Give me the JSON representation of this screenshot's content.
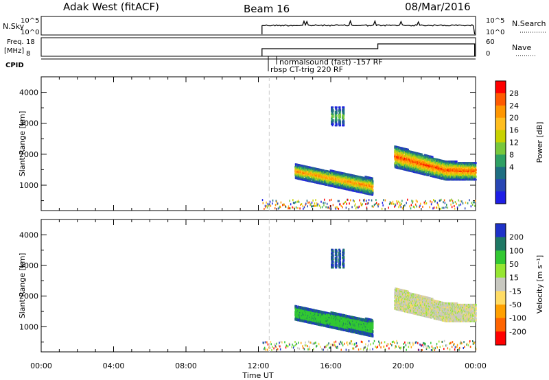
{
  "header": {
    "station": "Adak West (fitACF)",
    "beam": "Beam 16",
    "date": "08/Mar/2016"
  },
  "top_panels": {
    "nsky_label": "N.Sky",
    "nsky_ticks": [
      "10^5",
      "10^0"
    ],
    "nsearch_label": "N.Search",
    "nsearch_ticks": [
      "10^5",
      "10^0"
    ],
    "freq_label_line1": "Freq.",
    "freq_label_line2": "[MHz]",
    "freq_ticks": [
      "18",
      "8"
    ],
    "nave_label": "Nave",
    "nave_ticks": [
      "60",
      "0"
    ],
    "cpid_label": "CPID",
    "cpid_entries": [
      "normalsound (fast) -157 RF",
      "rbsp CT-trig 220 RF"
    ]
  },
  "chart_data": [
    {
      "type": "heatmap",
      "panel": "power",
      "ylabel": "Slant Range [km]",
      "yticks": [
        "4000",
        "3000",
        "2000",
        "1000"
      ],
      "ylim": [
        180,
        4500
      ],
      "xlim_hours": [
        0,
        24
      ],
      "colorbar_label": "Power [dB]",
      "colorbar_ticks": [
        "28",
        "24",
        "20",
        "16",
        "12",
        "8",
        "4"
      ],
      "colorbar_colors": [
        "#ff0000",
        "#ff5a00",
        "#ff9600",
        "#ffbe1e",
        "#c8d200",
        "#78c83c",
        "#2ea064",
        "#1e6e82",
        "#2846b4",
        "#1e1ee6"
      ],
      "echo_regions": [
        {
          "t_start": 14.0,
          "t_end": 18.3,
          "range_min": 800,
          "range_max": 1500,
          "peak_db": 26
        },
        {
          "t_start": 19.5,
          "t_end": 24.0,
          "range_min": 1100,
          "range_max": 2300,
          "peak_db": 30
        },
        {
          "t_start": 16.0,
          "t_end": 16.8,
          "range_min": 2900,
          "range_max": 3500,
          "peak_db": 16
        }
      ]
    },
    {
      "type": "heatmap",
      "panel": "velocity",
      "ylabel": "Slant Range [km]",
      "yticks": [
        "4000",
        "3000",
        "2000",
        "1000"
      ],
      "ylim": [
        180,
        4500
      ],
      "xlim_hours": [
        0,
        24
      ],
      "xticks": [
        "00:00",
        "04:00",
        "08:00",
        "12:00",
        "16:00",
        "20:00",
        "00:00"
      ],
      "xlabel": "Time UT",
      "colorbar_label": "Velocity [m s⁻¹]",
      "colorbar_ticks": [
        "200",
        "100",
        "50",
        "15",
        "-15",
        "-50",
        "-100",
        "-200"
      ],
      "colorbar_colors": [
        "#1e32c8",
        "#1e7864",
        "#32c832",
        "#96e632",
        "#c8c8c0",
        "#ffdc64",
        "#ffa000",
        "#ff6400",
        "#ff0000"
      ],
      "echo_regions": [
        {
          "t_start": 14.0,
          "t_end": 18.3,
          "range_min": 800,
          "range_max": 1500,
          "velocity": 60
        },
        {
          "t_start": 19.5,
          "t_end": 24.0,
          "range_min": 1100,
          "range_max": 2300,
          "velocity": 0
        },
        {
          "t_start": 16.0,
          "t_end": 16.8,
          "range_min": 2900,
          "range_max": 3500,
          "velocity": 150
        }
      ]
    }
  ]
}
